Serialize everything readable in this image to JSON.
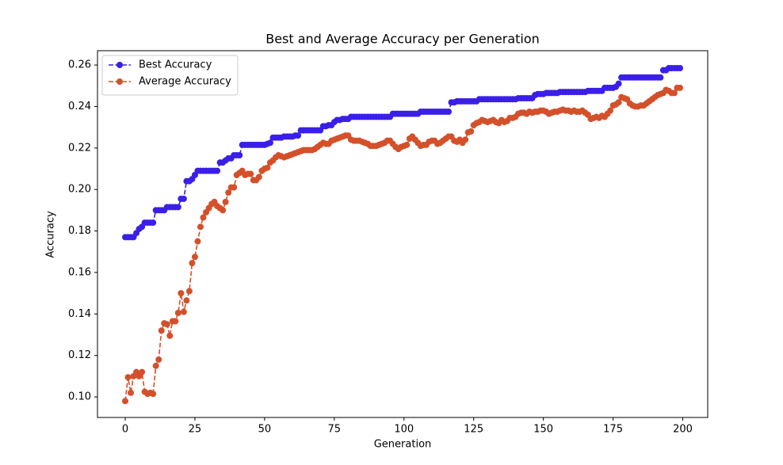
{
  "chart_data": {
    "type": "line",
    "title": "Best and Average Accuracy per Generation",
    "x_label": "Generation",
    "y_label": "Accuracy",
    "x": [
      0,
      1,
      2,
      3,
      4,
      5,
      6,
      7,
      8,
      9,
      10,
      11,
      12,
      13,
      14,
      15,
      16,
      17,
      18,
      19,
      20,
      21,
      22,
      23,
      24,
      25,
      26,
      27,
      28,
      29,
      30,
      31,
      32,
      33,
      34,
      35,
      36,
      37,
      38,
      39,
      40,
      41,
      42,
      43,
      44,
      45,
      46,
      47,
      48,
      49,
      50,
      51,
      52,
      53,
      54,
      55,
      56,
      57,
      58,
      59,
      60,
      61,
      62,
      63,
      64,
      65,
      66,
      67,
      68,
      69,
      70,
      71,
      72,
      73,
      74,
      75,
      76,
      77,
      78,
      79,
      80,
      81,
      82,
      83,
      84,
      85,
      86,
      87,
      88,
      89,
      90,
      91,
      92,
      93,
      94,
      95,
      96,
      97,
      98,
      99,
      100,
      101,
      102,
      103,
      104,
      105,
      106,
      107,
      108,
      109,
      110,
      111,
      112,
      113,
      114,
      115,
      116,
      117,
      118,
      119,
      120,
      121,
      122,
      123,
      124,
      125,
      126,
      127,
      128,
      129,
      130,
      131,
      132,
      133,
      134,
      135,
      136,
      137,
      138,
      139,
      140,
      141,
      142,
      143,
      144,
      145,
      146,
      147,
      148,
      149,
      150,
      151,
      152,
      153,
      154,
      155,
      156,
      157,
      158,
      159,
      160,
      161,
      162,
      163,
      164,
      165,
      166,
      167,
      168,
      169,
      170,
      171,
      172,
      173,
      174,
      175,
      176,
      177,
      178,
      179,
      180,
      181,
      182,
      183,
      184,
      185,
      186,
      187,
      188,
      189,
      190,
      191,
      192,
      193,
      194,
      195,
      196,
      197,
      198,
      199
    ],
    "series": [
      {
        "name": "Best Accuracy",
        "color": "#3a1fe8",
        "values": [
          0.177,
          0.177,
          0.177,
          0.177,
          0.179,
          0.181,
          0.182,
          0.184,
          0.184,
          0.184,
          0.184,
          0.19,
          0.19,
          0.19,
          0.19,
          0.1915,
          0.1915,
          0.1915,
          0.1915,
          0.1915,
          0.1955,
          0.1955,
          0.204,
          0.204,
          0.205,
          0.207,
          0.209,
          0.209,
          0.209,
          0.209,
          0.209,
          0.209,
          0.209,
          0.209,
          0.213,
          0.213,
          0.214,
          0.215,
          0.215,
          0.2165,
          0.2165,
          0.2165,
          0.2215,
          0.2215,
          0.2215,
          0.2215,
          0.2215,
          0.2215,
          0.2215,
          0.2215,
          0.2215,
          0.222,
          0.2225,
          0.225,
          0.225,
          0.225,
          0.225,
          0.2255,
          0.2255,
          0.2255,
          0.2255,
          0.226,
          0.226,
          0.2285,
          0.2285,
          0.2285,
          0.2285,
          0.2285,
          0.2285,
          0.2285,
          0.2285,
          0.2305,
          0.2305,
          0.231,
          0.231,
          0.2325,
          0.2335,
          0.2335,
          0.234,
          0.234,
          0.234,
          0.235,
          0.235,
          0.235,
          0.235,
          0.235,
          0.235,
          0.235,
          0.235,
          0.235,
          0.235,
          0.235,
          0.235,
          0.235,
          0.235,
          0.235,
          0.2365,
          0.2365,
          0.2365,
          0.2365,
          0.2365,
          0.2365,
          0.2365,
          0.2365,
          0.2365,
          0.2365,
          0.2375,
          0.2375,
          0.2375,
          0.2375,
          0.2375,
          0.2375,
          0.2375,
          0.2375,
          0.2375,
          0.2375,
          0.2375,
          0.242,
          0.242,
          0.2425,
          0.2425,
          0.2425,
          0.2425,
          0.2425,
          0.2425,
          0.2425,
          0.2425,
          0.2435,
          0.2435,
          0.2435,
          0.2435,
          0.2435,
          0.2435,
          0.2435,
          0.2435,
          0.2435,
          0.2435,
          0.2435,
          0.2435,
          0.2435,
          0.2435,
          0.244,
          0.244,
          0.244,
          0.244,
          0.244,
          0.244,
          0.2455,
          0.246,
          0.246,
          0.246,
          0.2465,
          0.2465,
          0.2465,
          0.2465,
          0.2465,
          0.247,
          0.247,
          0.247,
          0.247,
          0.247,
          0.247,
          0.247,
          0.247,
          0.247,
          0.247,
          0.2475,
          0.2475,
          0.2475,
          0.2475,
          0.2475,
          0.2475,
          0.249,
          0.249,
          0.249,
          0.249,
          0.2495,
          0.251,
          0.254,
          0.254,
          0.254,
          0.254,
          0.254,
          0.254,
          0.254,
          0.254,
          0.254,
          0.254,
          0.254,
          0.254,
          0.254,
          0.254,
          0.254,
          0.2575,
          0.2575,
          0.2585,
          0.2585,
          0.2585,
          0.2585,
          0.2585
        ]
      },
      {
        "name": "Average Accuracy",
        "color": "#d4502a",
        "values": [
          0.098,
          0.1095,
          0.102,
          0.11,
          0.112,
          0.11,
          0.112,
          0.1025,
          0.1015,
          0.102,
          0.1015,
          0.115,
          0.118,
          0.132,
          0.1355,
          0.135,
          0.1295,
          0.1365,
          0.1365,
          0.1405,
          0.15,
          0.141,
          0.1465,
          0.151,
          0.1645,
          0.1675,
          0.175,
          0.182,
          0.1865,
          0.189,
          0.191,
          0.193,
          0.194,
          0.192,
          0.191,
          0.19,
          0.194,
          0.1985,
          0.201,
          0.201,
          0.207,
          0.208,
          0.209,
          0.207,
          0.2075,
          0.2075,
          0.2045,
          0.2045,
          0.206,
          0.209,
          0.21,
          0.2105,
          0.213,
          0.214,
          0.2155,
          0.2165,
          0.216,
          0.2155,
          0.216,
          0.2165,
          0.217,
          0.2175,
          0.218,
          0.2185,
          0.219,
          0.219,
          0.219,
          0.219,
          0.2195,
          0.2205,
          0.2215,
          0.2225,
          0.222,
          0.222,
          0.2235,
          0.224,
          0.2245,
          0.225,
          0.2255,
          0.226,
          0.226,
          0.224,
          0.2235,
          0.2235,
          0.2235,
          0.223,
          0.2225,
          0.222,
          0.221,
          0.221,
          0.221,
          0.2215,
          0.222,
          0.2225,
          0.2235,
          0.2235,
          0.222,
          0.2205,
          0.2195,
          0.2205,
          0.221,
          0.2215,
          0.2245,
          0.2255,
          0.224,
          0.2225,
          0.221,
          0.2215,
          0.2215,
          0.223,
          0.2235,
          0.2235,
          0.222,
          0.2225,
          0.2235,
          0.2245,
          0.2255,
          0.2255,
          0.2235,
          0.223,
          0.224,
          0.2225,
          0.224,
          0.2275,
          0.228,
          0.231,
          0.232,
          0.2325,
          0.2335,
          0.233,
          0.2325,
          0.233,
          0.2335,
          0.2325,
          0.232,
          0.2335,
          0.2325,
          0.233,
          0.2345,
          0.2345,
          0.235,
          0.2365,
          0.237,
          0.237,
          0.2365,
          0.2375,
          0.237,
          0.2375,
          0.2375,
          0.238,
          0.238,
          0.2375,
          0.2365,
          0.237,
          0.2375,
          0.2375,
          0.238,
          0.2385,
          0.238,
          0.238,
          0.2375,
          0.238,
          0.2375,
          0.2375,
          0.238,
          0.237,
          0.236,
          0.234,
          0.2345,
          0.235,
          0.2345,
          0.2355,
          0.235,
          0.2365,
          0.238,
          0.2405,
          0.241,
          0.242,
          0.2445,
          0.244,
          0.2435,
          0.2415,
          0.2405,
          0.24,
          0.24,
          0.2405,
          0.2405,
          0.2415,
          0.2425,
          0.2435,
          0.2445,
          0.2455,
          0.246,
          0.2465,
          0.248,
          0.2475,
          0.2465,
          0.2465,
          0.249,
          0.249
        ]
      }
    ],
    "xlim": [
      -9.95,
      208.95
    ],
    "xticks": [
      0,
      25,
      50,
      75,
      100,
      125,
      150,
      175,
      200
    ],
    "ylim": [
      0.0901,
      0.2669
    ],
    "yticks": [
      {
        "value": 0.1,
        "label": "0.10"
      },
      {
        "value": 0.12,
        "label": "0.12"
      },
      {
        "value": 0.14,
        "label": "0.14"
      },
      {
        "value": 0.16,
        "label": "0.16"
      },
      {
        "value": 0.18,
        "label": "0.18"
      },
      {
        "value": 0.2,
        "label": "0.20"
      },
      {
        "value": 0.22,
        "label": "0.22"
      },
      {
        "value": 0.24,
        "label": "0.24"
      },
      {
        "value": 0.26,
        "label": "0.26"
      }
    ],
    "legend": "upper left",
    "grid": false
  }
}
